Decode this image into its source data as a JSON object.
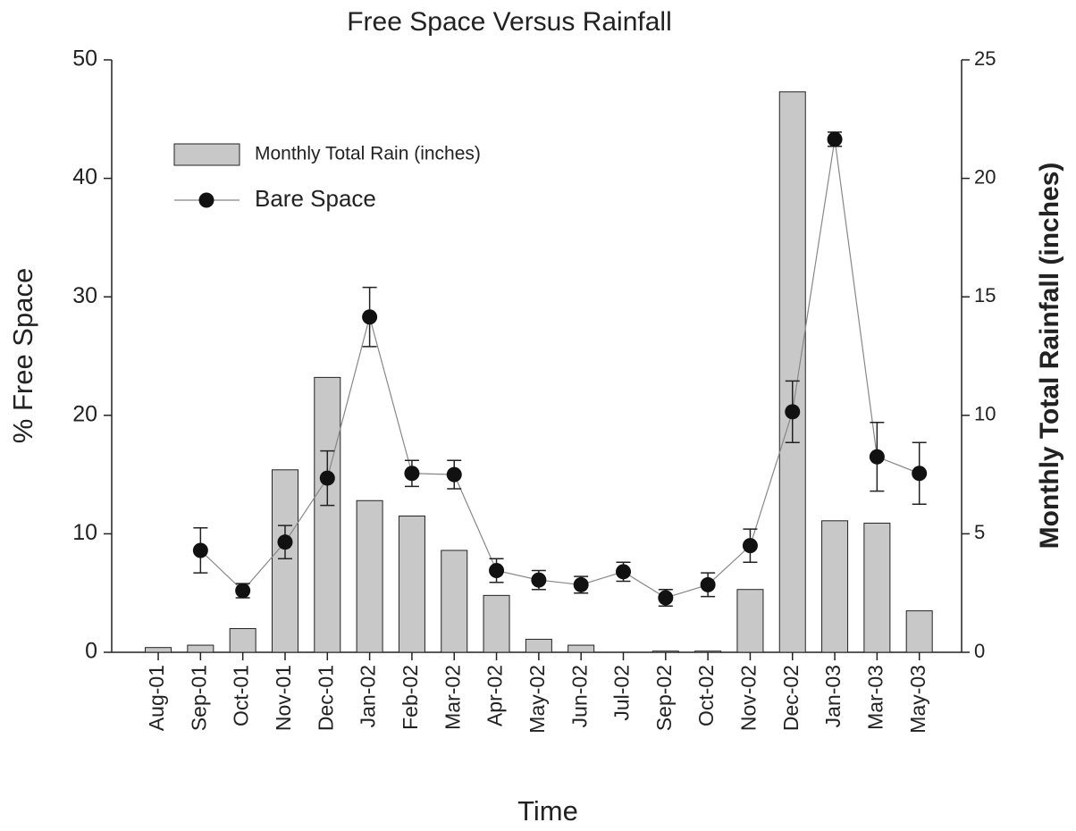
{
  "chart_data": {
    "type": "bar",
    "title": "Free Space Versus Rainfall",
    "x_label": "Time",
    "y_label": "% Free Space",
    "y2_label": "Monthly Total Rainfall (inches)",
    "categories": [
      "Aug-01",
      "Sep-01",
      "Oct-01",
      "Nov-01",
      "Dec-01",
      "Jan-02",
      "Feb-02",
      "Mar-02",
      "Apr-02",
      "May-02",
      "Jun-02",
      "Jul-02",
      "Sep-02",
      "Oct-02",
      "Nov-02",
      "Dec-02",
      "Jan-03",
      "Mar-03",
      "May-03"
    ],
    "series": [
      {
        "name": "Monthly Total Rain (inches)",
        "type": "bar",
        "axis": "y2",
        "color": "#c8c8c8",
        "values": [
          0.2,
          0.3,
          1.0,
          7.7,
          11.6,
          6.4,
          5.75,
          4.3,
          2.4,
          0.55,
          0.3,
          0,
          0.05,
          0.05,
          2.65,
          23.65,
          5.55,
          5.45,
          1.75
        ]
      },
      {
        "name": "Bare Space",
        "type": "line",
        "color": "#111111",
        "values": [
          null,
          8.6,
          5.2,
          9.3,
          14.7,
          28.3,
          15.1,
          15.0,
          6.9,
          6.1,
          5.7,
          6.8,
          4.6,
          5.7,
          9.0,
          20.3,
          43.3,
          16.5,
          15.1
        ],
        "errors": [
          null,
          1.9,
          0.6,
          1.4,
          2.3,
          2.5,
          1.1,
          1.2,
          1.0,
          0.8,
          0.7,
          0.8,
          0.7,
          1.0,
          1.4,
          2.6,
          0.6,
          2.9,
          2.6
        ]
      }
    ],
    "ylim": [
      0,
      50
    ],
    "yticks": [
      0,
      10,
      20,
      30,
      40,
      50
    ],
    "y2lim": [
      0,
      25
    ],
    "y2ticks": [
      0,
      5,
      10,
      15,
      20,
      25
    ],
    "grid": false,
    "legend": "upper left"
  }
}
